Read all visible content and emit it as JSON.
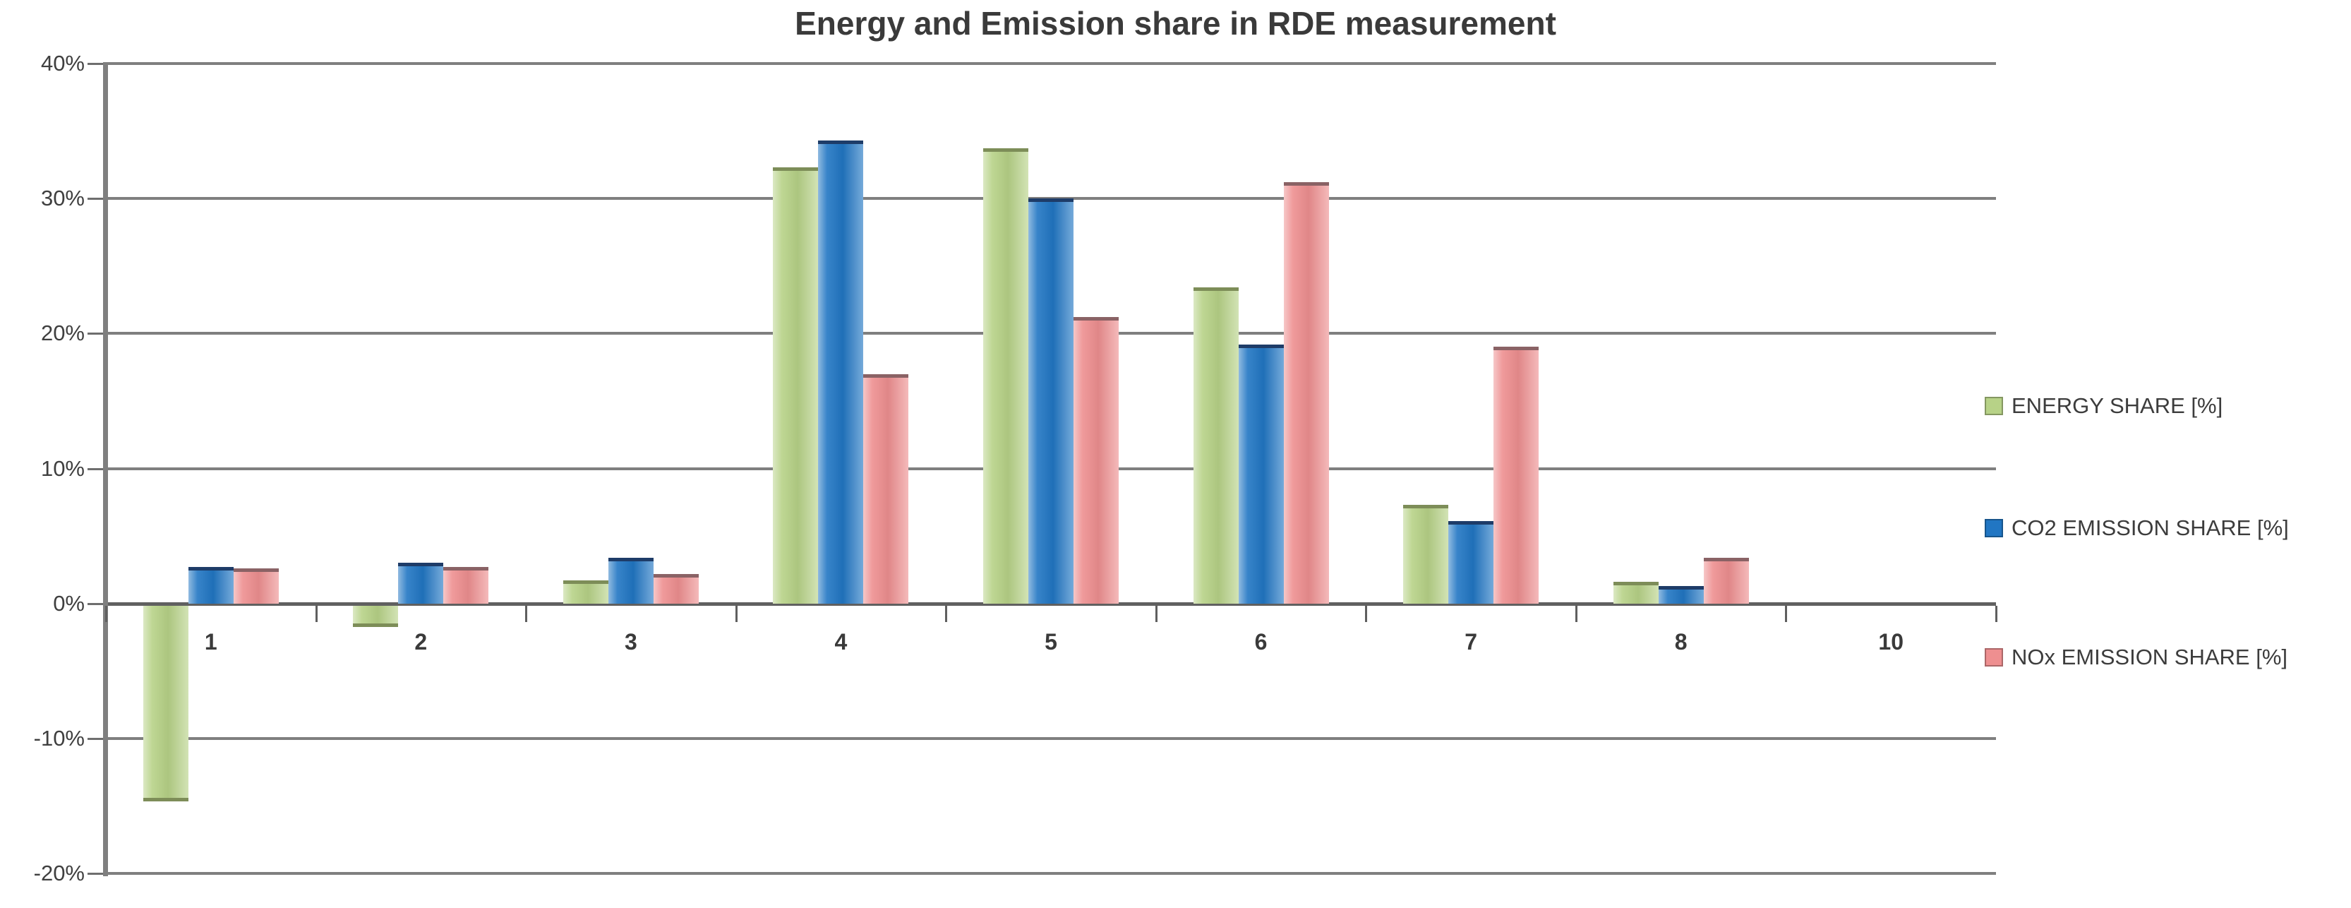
{
  "chart_data": {
    "type": "bar",
    "title": "Energy and Emission share in RDE measurement",
    "categories": [
      "1",
      "2",
      "3",
      "4",
      "5",
      "6",
      "7",
      "8",
      "10"
    ],
    "series": [
      {
        "name": "ENERGY SHARE [%]",
        "color": "#b7d287",
        "cap_color": "#7d8d58",
        "values": [
          -14.5,
          -1.6,
          1.7,
          32.3,
          33.7,
          23.4,
          7.3,
          1.6,
          0
        ]
      },
      {
        "name": "CO2 EMISSION SHARE [%]",
        "color": "#2176c3",
        "cap_color": "#1e3c68",
        "values": [
          2.7,
          3.0,
          3.4,
          34.3,
          30.0,
          19.2,
          6.1,
          1.3,
          0
        ]
      },
      {
        "name": "NOx EMISSION SHARE [%]",
        "color": "#ee8f90",
        "cap_color": "#8a6265",
        "values": [
          2.6,
          2.7,
          2.2,
          17.0,
          21.2,
          31.2,
          19.0,
          3.4,
          0
        ]
      }
    ],
    "y_axis": {
      "tick_labels": [
        "40%",
        "30%",
        "20%",
        "10%",
        "0%",
        "-10%",
        "-20%"
      ],
      "tick_values": [
        40,
        30,
        20,
        10,
        0,
        -10,
        -20
      ],
      "min": -20,
      "max": 40,
      "unit": "%"
    },
    "grid": true,
    "legend_position": "right"
  },
  "colors": {
    "background": "#ffffff",
    "gridline": "#7f7f7f",
    "axis_line": "#606060",
    "text": "#3c3c3c"
  }
}
